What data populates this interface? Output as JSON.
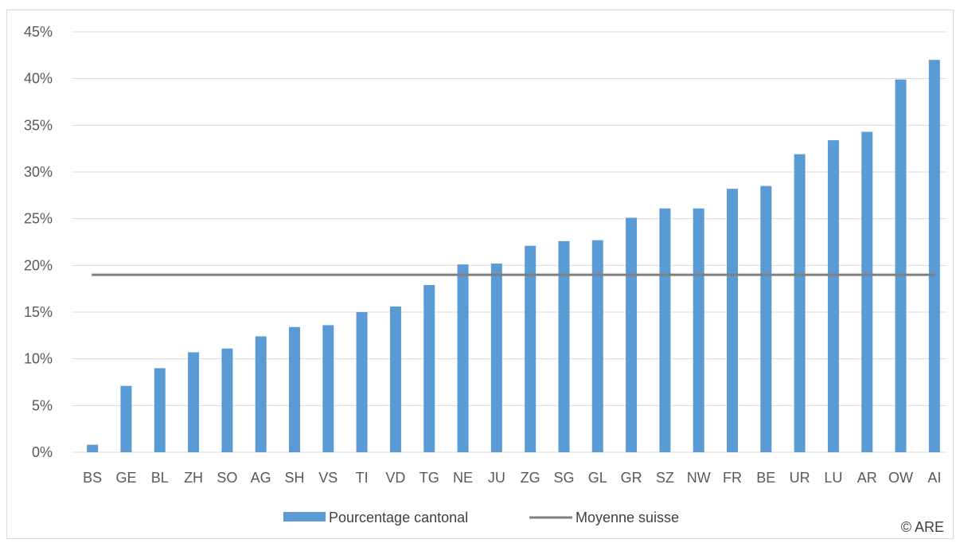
{
  "chart_data": {
    "type": "bar",
    "categories": [
      "BS",
      "GE",
      "BL",
      "ZH",
      "SO",
      "AG",
      "SH",
      "VS",
      "TI",
      "VD",
      "TG",
      "NE",
      "JU",
      "ZG",
      "SG",
      "GL",
      "GR",
      "SZ",
      "NW",
      "FR",
      "BE",
      "UR",
      "LU",
      "AR",
      "OW",
      "AI"
    ],
    "series": [
      {
        "name": "Pourcentage cantonal",
        "type": "bar",
        "color": "#5b9bd5",
        "values": [
          0.8,
          7.1,
          9.0,
          10.7,
          11.1,
          12.4,
          13.4,
          13.6,
          15.0,
          15.6,
          17.9,
          20.1,
          20.2,
          22.1,
          22.6,
          22.7,
          25.1,
          26.1,
          26.1,
          28.2,
          28.5,
          31.9,
          33.4,
          34.3,
          39.9,
          42.0
        ]
      },
      {
        "name": "Moyenne suisse",
        "type": "line",
        "color": "#7f7f7f",
        "value": 19.0
      }
    ],
    "y_ticks": [
      "0%",
      "5%",
      "10%",
      "15%",
      "20%",
      "25%",
      "30%",
      "35%",
      "40%",
      "45%"
    ],
    "ylim": [
      0,
      45
    ],
    "grid": true,
    "legend_position": "bottom",
    "credit": "© ARE"
  }
}
